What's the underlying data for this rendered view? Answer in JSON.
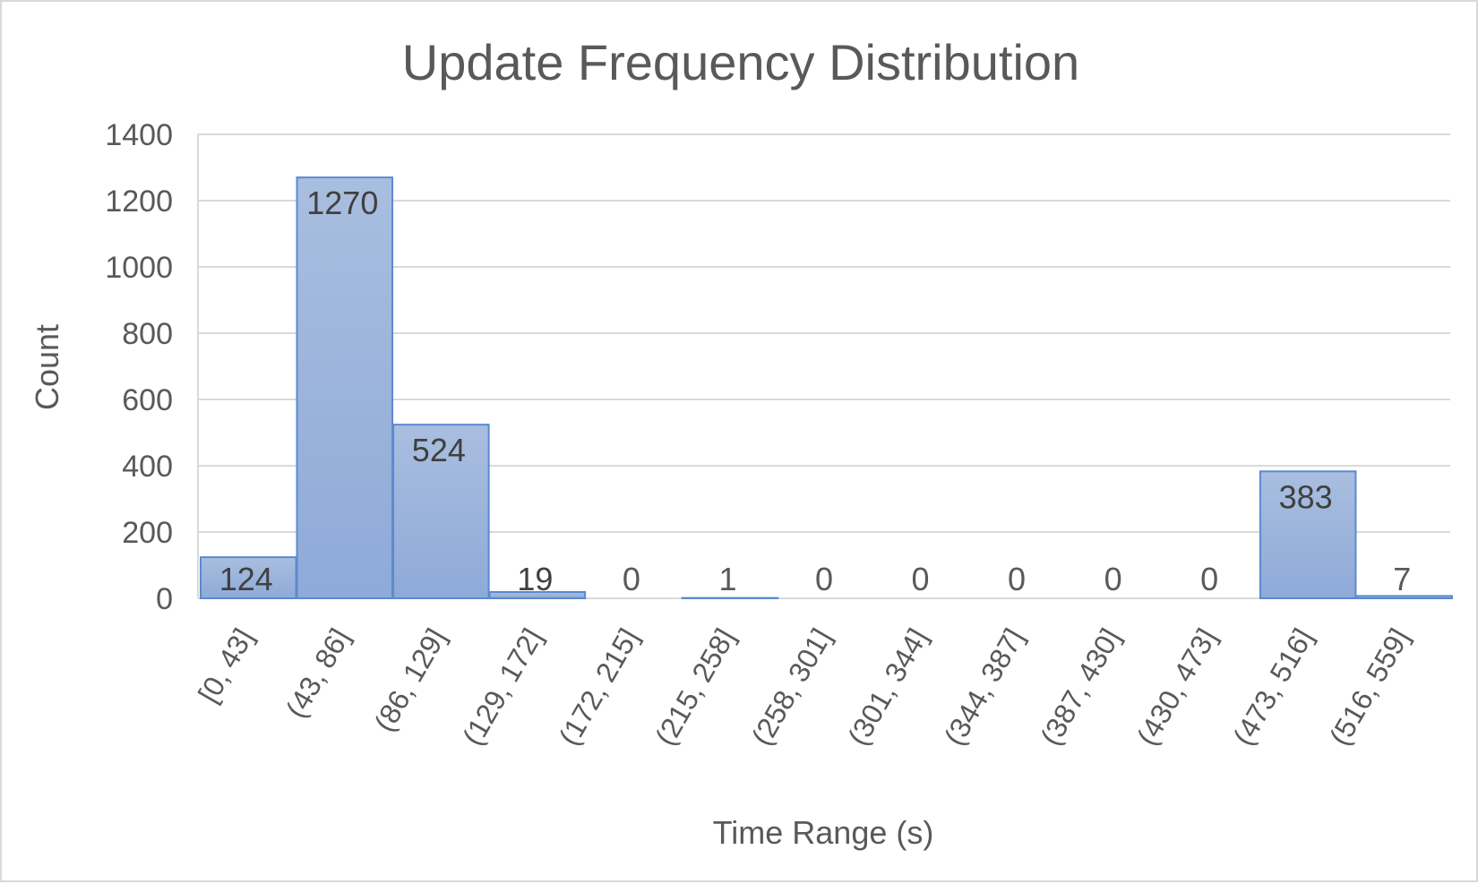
{
  "chart_data": {
    "type": "bar",
    "title": "Update Frequency Distribution",
    "xlabel": "Time Range (s)",
    "ylabel": "Count",
    "categories": [
      "[0, 43]",
      "(43, 86]",
      "(86, 129]",
      "(129, 172]",
      "(172, 215]",
      "(215, 258]",
      "(258, 301]",
      "(301, 344]",
      "(344, 387]",
      "(387, 430]",
      "(430, 473]",
      "(473, 516]",
      "(516, 559]"
    ],
    "values": [
      124,
      1270,
      524,
      19,
      0,
      1,
      0,
      0,
      0,
      0,
      0,
      383,
      7
    ],
    "ylim": [
      0,
      1400
    ],
    "yticks": [
      0,
      200,
      400,
      600,
      800,
      1000,
      1200,
      1400
    ],
    "grid": true,
    "legend": "none",
    "colors": {
      "bar_fill_top": "#a9bedf",
      "bar_fill_bottom": "#8eaad8",
      "bar_edge": "#5b8ad0",
      "text": "#595959",
      "data_label_text": "#404040",
      "grid": "#d9d9d9"
    }
  }
}
